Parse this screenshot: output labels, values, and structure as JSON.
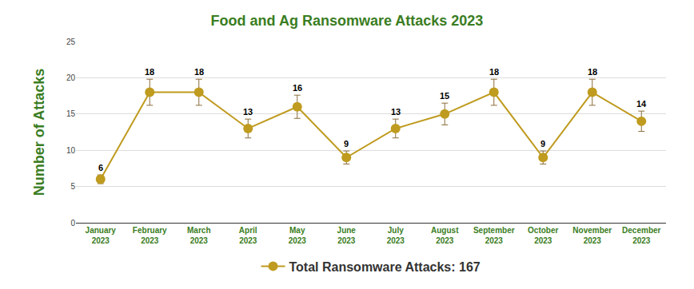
{
  "chart_data": {
    "type": "line",
    "title": "Food and Ag Ransomware Attacks 2023",
    "y_label": "Number of Attacks",
    "categories": [
      "January 2023",
      "February 2023",
      "March 2023",
      "April 2023",
      "May 2023",
      "June 2023",
      "July 2023",
      "August 2023",
      "September 2023",
      "October 2023",
      "November 2023",
      "December 2023"
    ],
    "series": [
      {
        "name": "Total Ransomware Attacks: 167",
        "color": "#bf9b1f",
        "values": [
          6,
          18,
          18,
          13,
          16,
          9,
          13,
          15,
          18,
          9,
          18,
          14
        ],
        "error": [
          0.6,
          1.8,
          1.8,
          1.3,
          1.6,
          0.9,
          1.3,
          1.5,
          1.8,
          0.9,
          1.8,
          1.4
        ]
      }
    ],
    "ylim": [
      0,
      25
    ],
    "yticks": [
      0,
      5,
      10,
      15,
      20,
      25
    ],
    "grid": true,
    "legend": "bottom",
    "data_labels": true,
    "marker": "circle"
  }
}
